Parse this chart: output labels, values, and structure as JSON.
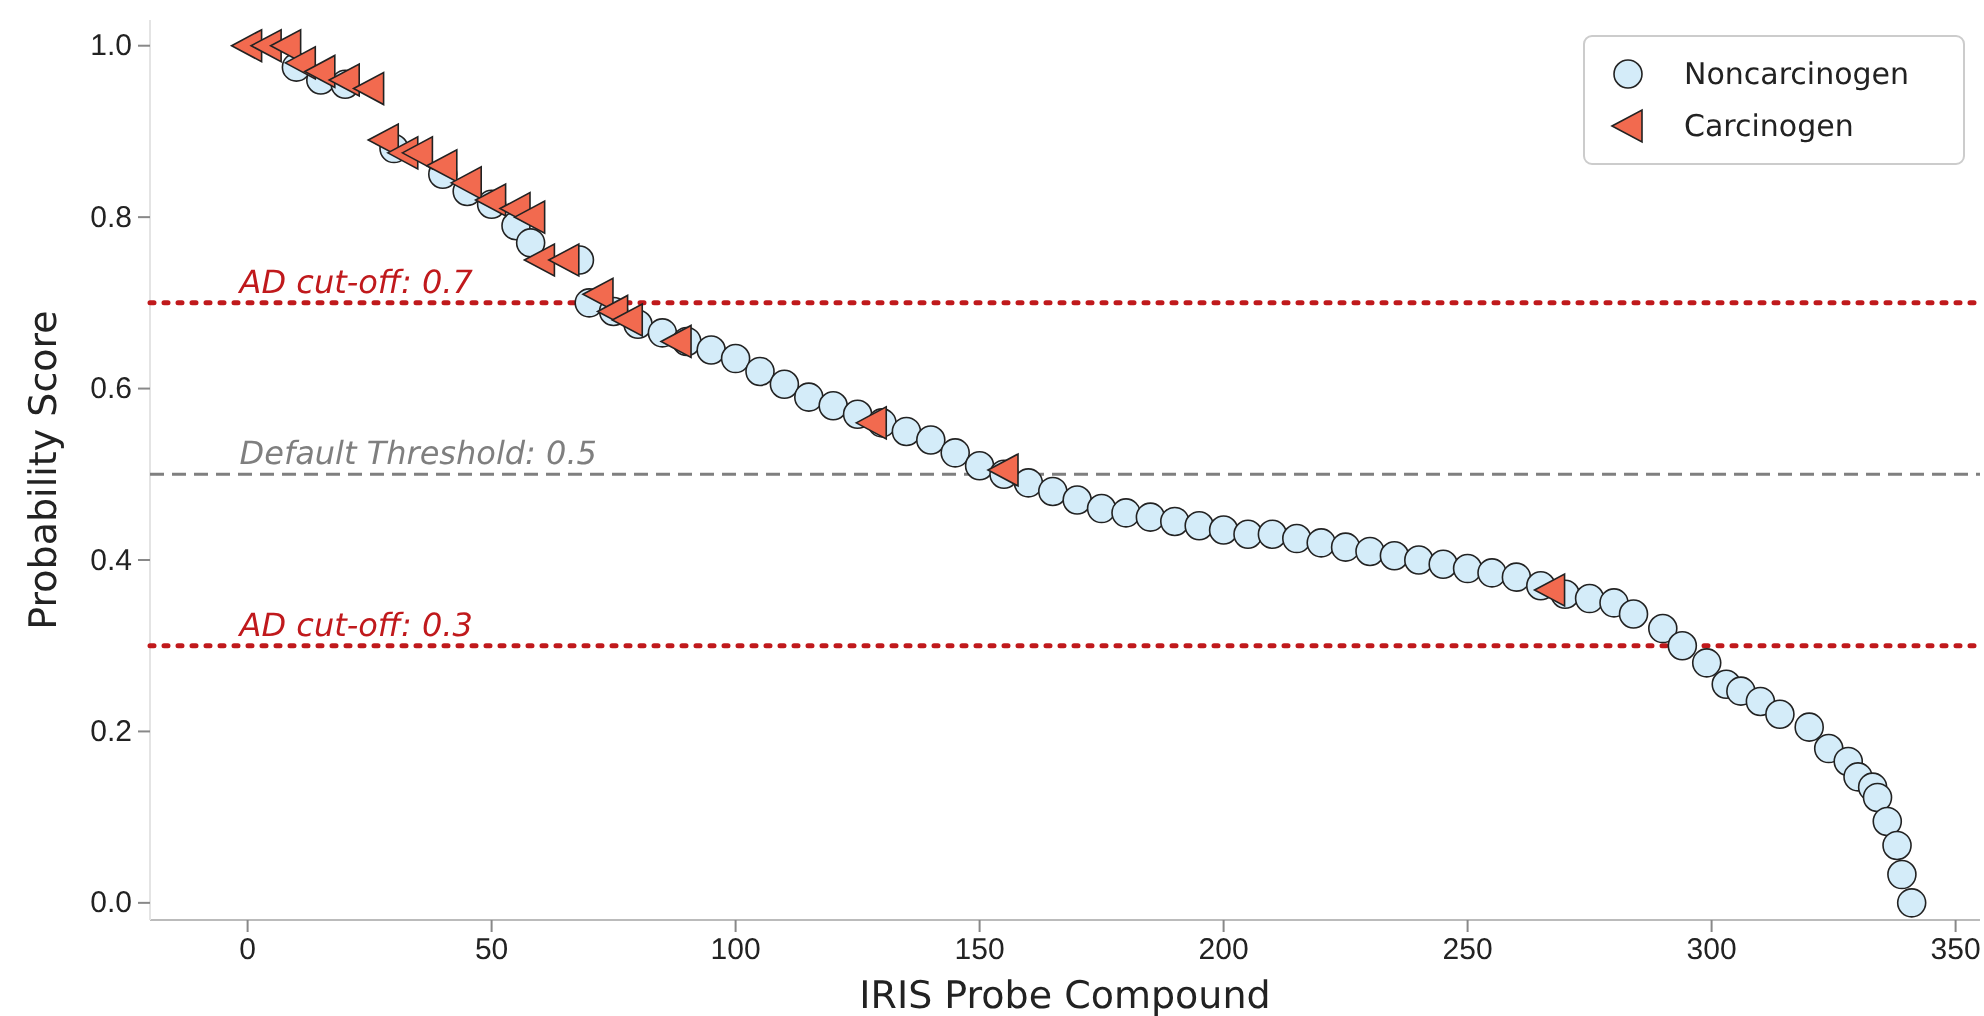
{
  "chart_data": {
    "type": "scatter",
    "xlabel": "IRIS Probe Compound",
    "ylabel": "Probability Score",
    "xlim": [
      -20,
      355
    ],
    "ylim": [
      -0.02,
      1.03
    ],
    "xticks": [
      0,
      50,
      100,
      150,
      200,
      250,
      300,
      350
    ],
    "yticks": [
      {
        "value": 0,
        "label": "0.0"
      },
      {
        "value": 0.2,
        "label": "0.2"
      },
      {
        "value": 0.4,
        "label": "0.4"
      },
      {
        "value": 0.6,
        "label": "0.6"
      },
      {
        "value": 0.8,
        "label": "0.8"
      },
      {
        "value": 1,
        "label": "1.0"
      }
    ],
    "legend": "top right",
    "grid": false,
    "series": [
      {
        "name": "Noncarcinogen",
        "color": "#d4ecf9",
        "marker": "circle",
        "x": [
          10,
          15,
          20,
          30,
          40,
          45,
          50,
          55,
          58,
          68,
          70,
          75,
          80,
          85,
          90,
          95,
          100,
          105,
          110,
          115,
          120,
          125,
          130,
          135,
          140,
          145,
          150,
          155,
          160,
          165,
          170,
          175,
          180,
          185,
          190,
          195,
          200,
          205,
          210,
          215,
          220,
          225,
          230,
          235,
          240,
          245,
          250,
          255,
          260,
          265,
          270,
          275,
          280,
          284,
          290,
          294,
          299,
          303,
          306,
          310,
          314,
          320,
          324,
          328,
          330,
          333,
          334,
          336,
          338,
          339,
          341
        ],
        "values": [
          0.975,
          0.96,
          0.955,
          0.88,
          0.85,
          0.83,
          0.815,
          0.79,
          0.77,
          0.75,
          0.7,
          0.69,
          0.675,
          0.665,
          0.655,
          0.645,
          0.635,
          0.62,
          0.605,
          0.59,
          0.58,
          0.57,
          0.56,
          0.55,
          0.54,
          0.525,
          0.51,
          0.5,
          0.49,
          0.48,
          0.47,
          0.46,
          0.455,
          0.45,
          0.445,
          0.44,
          0.435,
          0.43,
          0.43,
          0.425,
          0.42,
          0.415,
          0.41,
          0.405,
          0.4,
          0.395,
          0.39,
          0.385,
          0.38,
          0.37,
          0.36,
          0.355,
          0.35,
          0.337,
          0.32,
          0.3,
          0.28,
          0.255,
          0.247,
          0.235,
          0.22,
          0.205,
          0.18,
          0.165,
          0.147,
          0.135,
          0.123,
          0.095,
          0.067,
          0.033,
          0
        ]
      },
      {
        "name": "Carcinogen",
        "color": "#f26a4f",
        "marker": "triangle",
        "x": [
          0,
          4,
          8,
          11,
          15,
          20,
          25,
          28,
          32,
          35,
          40,
          45,
          50,
          55,
          58,
          60,
          65,
          72,
          75,
          78,
          88,
          128,
          155,
          267
        ],
        "values": [
          1,
          1,
          1,
          0.98,
          0.97,
          0.96,
          0.95,
          0.89,
          0.875,
          0.875,
          0.86,
          0.84,
          0.82,
          0.81,
          0.8,
          0.75,
          0.75,
          0.71,
          0.69,
          0.68,
          0.655,
          0.56,
          0.505,
          0.365
        ]
      }
    ],
    "ref_lines": [
      {
        "axis": "y",
        "value": 0.7,
        "label": "AD cut-off: 0.7",
        "color": "#c0191c",
        "line_style": "dotted"
      },
      {
        "axis": "y",
        "value": 0.5,
        "label": "Default Threshold: 0.5",
        "color": "#7f7f7f",
        "line_style": "dashed"
      },
      {
        "axis": "y",
        "value": 0.3,
        "label": "AD cut-off: 0.3",
        "color": "#c0191c",
        "line_style": "dotted"
      }
    ]
  }
}
